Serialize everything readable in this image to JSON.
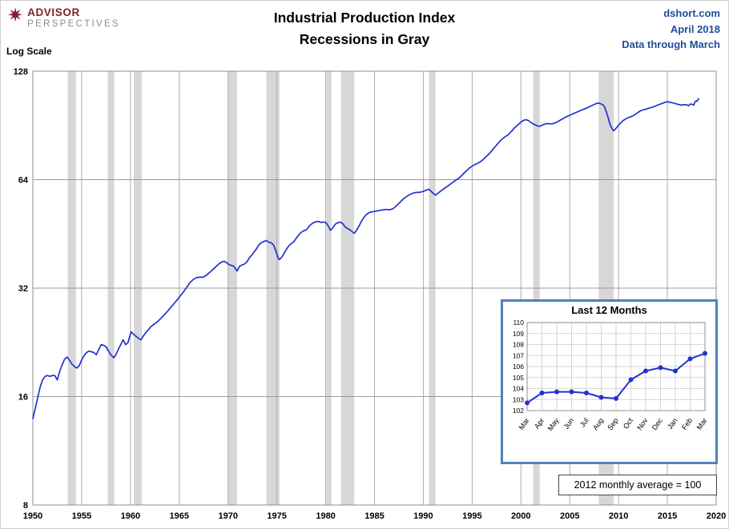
{
  "header": {
    "logo": {
      "icon": "compass-star-icon",
      "line1": "ADVISOR",
      "line2": "PERSPECTIVES"
    },
    "title_line1": "Industrial Production Index",
    "title_line2": "Recessions in Gray",
    "source": {
      "site": "dshort.com",
      "date": "April 2018",
      "note": "Data through March"
    }
  },
  "chart_data": {
    "type": "line",
    "title": "Industrial Production Index",
    "subtitle": "Recessions in Gray",
    "y_scale": "log2",
    "y_scale_label": "Log Scale",
    "ylim": [
      8,
      128
    ],
    "y_ticks": [
      128,
      64,
      32,
      16,
      8
    ],
    "xlim": [
      1950,
      2020
    ],
    "x_ticks": [
      1950,
      1955,
      1960,
      1965,
      1970,
      1975,
      1980,
      1985,
      1990,
      1995,
      2000,
      2005,
      2010,
      2015,
      2020
    ],
    "line_color": "#2133cc",
    "recession_color": "#d7d7d7",
    "grid": true,
    "legend_position": "none",
    "footnote": "2012  monthly average = 100",
    "recessions": [
      [
        1953.58,
        1954.42
      ],
      [
        1957.67,
        1958.33
      ],
      [
        1960.33,
        1961.17
      ],
      [
        1969.96,
        1970.92
      ],
      [
        1973.92,
        1975.25
      ],
      [
        1980.08,
        1980.58
      ],
      [
        1981.58,
        1982.92
      ],
      [
        1990.58,
        1991.25
      ],
      [
        2001.25,
        2001.92
      ],
      [
        2007.96,
        2009.5
      ]
    ],
    "series": [
      {
        "name": "Industrial Production Index (2012=100)",
        "points": [
          [
            1950.0,
            13.9
          ],
          [
            1950.25,
            14.8
          ],
          [
            1950.5,
            15.9
          ],
          [
            1950.75,
            17.0
          ],
          [
            1951.0,
            17.8
          ],
          [
            1951.25,
            18.2
          ],
          [
            1951.5,
            18.3
          ],
          [
            1951.75,
            18.2
          ],
          [
            1952.0,
            18.3
          ],
          [
            1952.25,
            18.3
          ],
          [
            1952.5,
            17.8
          ],
          [
            1952.75,
            18.8
          ],
          [
            1953.0,
            19.6
          ],
          [
            1953.25,
            20.3
          ],
          [
            1953.5,
            20.6
          ],
          [
            1953.75,
            20.2
          ],
          [
            1954.0,
            19.7
          ],
          [
            1954.25,
            19.4
          ],
          [
            1954.5,
            19.2
          ],
          [
            1954.75,
            19.5
          ],
          [
            1955.0,
            20.2
          ],
          [
            1955.25,
            20.8
          ],
          [
            1955.5,
            21.2
          ],
          [
            1955.75,
            21.4
          ],
          [
            1956.0,
            21.3
          ],
          [
            1956.25,
            21.2
          ],
          [
            1956.5,
            20.9
          ],
          [
            1956.75,
            21.6
          ],
          [
            1957.0,
            22.3
          ],
          [
            1957.25,
            22.2
          ],
          [
            1957.5,
            22.0
          ],
          [
            1957.75,
            21.4
          ],
          [
            1958.0,
            20.9
          ],
          [
            1958.3,
            20.5
          ],
          [
            1958.5,
            20.9
          ],
          [
            1958.75,
            21.6
          ],
          [
            1959.0,
            22.3
          ],
          [
            1959.25,
            23.0
          ],
          [
            1959.5,
            22.3
          ],
          [
            1959.75,
            22.6
          ],
          [
            1959.92,
            23.5
          ],
          [
            1960.08,
            24.2
          ],
          [
            1960.33,
            23.8
          ],
          [
            1960.58,
            23.5
          ],
          [
            1960.83,
            23.2
          ],
          [
            1961.08,
            23.0
          ],
          [
            1961.33,
            23.6
          ],
          [
            1961.58,
            24.1
          ],
          [
            1961.83,
            24.5
          ],
          [
            1962.08,
            25.0
          ],
          [
            1962.42,
            25.4
          ],
          [
            1962.75,
            25.8
          ],
          [
            1963.08,
            26.3
          ],
          [
            1963.42,
            26.9
          ],
          [
            1963.75,
            27.5
          ],
          [
            1964.08,
            28.2
          ],
          [
            1964.42,
            28.9
          ],
          [
            1964.75,
            29.6
          ],
          [
            1965.08,
            30.4
          ],
          [
            1965.42,
            31.2
          ],
          [
            1965.75,
            32.1
          ],
          [
            1966.08,
            33.1
          ],
          [
            1966.42,
            33.8
          ],
          [
            1966.75,
            34.2
          ],
          [
            1967.08,
            34.3
          ],
          [
            1967.42,
            34.3
          ],
          [
            1967.75,
            34.7
          ],
          [
            1968.08,
            35.3
          ],
          [
            1968.42,
            36.0
          ],
          [
            1968.75,
            36.7
          ],
          [
            1969.08,
            37.4
          ],
          [
            1969.42,
            37.9
          ],
          [
            1969.58,
            38.0
          ],
          [
            1969.83,
            37.7
          ],
          [
            1970.08,
            37.2
          ],
          [
            1970.33,
            37.0
          ],
          [
            1970.58,
            36.8
          ],
          [
            1970.83,
            36.0
          ],
          [
            1970.92,
            35.7
          ],
          [
            1971.17,
            36.8
          ],
          [
            1971.42,
            37.1
          ],
          [
            1971.67,
            37.3
          ],
          [
            1971.92,
            37.8
          ],
          [
            1972.17,
            38.8
          ],
          [
            1972.42,
            39.5
          ],
          [
            1972.67,
            40.3
          ],
          [
            1972.92,
            41.2
          ],
          [
            1973.17,
            42.2
          ],
          [
            1973.42,
            42.8
          ],
          [
            1973.67,
            43.1
          ],
          [
            1973.92,
            43.4
          ],
          [
            1974.17,
            42.9
          ],
          [
            1974.42,
            42.8
          ],
          [
            1974.67,
            42.1
          ],
          [
            1974.92,
            40.4
          ],
          [
            1975.08,
            39.1
          ],
          [
            1975.25,
            38.4
          ],
          [
            1975.5,
            39.0
          ],
          [
            1975.75,
            40.0
          ],
          [
            1976.0,
            41.1
          ],
          [
            1976.25,
            42.0
          ],
          [
            1976.5,
            42.6
          ],
          [
            1976.75,
            43.1
          ],
          [
            1977.0,
            44.1
          ],
          [
            1977.25,
            45.0
          ],
          [
            1977.5,
            45.7
          ],
          [
            1977.75,
            46.2
          ],
          [
            1978.0,
            46.4
          ],
          [
            1978.25,
            47.3
          ],
          [
            1978.5,
            48.1
          ],
          [
            1978.75,
            48.6
          ],
          [
            1979.0,
            48.9
          ],
          [
            1979.25,
            49.0
          ],
          [
            1979.5,
            48.7
          ],
          [
            1979.75,
            48.8
          ],
          [
            1980.0,
            48.7
          ],
          [
            1980.25,
            47.7
          ],
          [
            1980.5,
            46.3
          ],
          [
            1980.75,
            47.2
          ],
          [
            1981.0,
            48.2
          ],
          [
            1981.25,
            48.6
          ],
          [
            1981.5,
            48.8
          ],
          [
            1981.75,
            48.3
          ],
          [
            1982.0,
            47.3
          ],
          [
            1982.25,
            46.8
          ],
          [
            1982.5,
            46.4
          ],
          [
            1982.75,
            45.8
          ],
          [
            1982.92,
            45.4
          ],
          [
            1983.17,
            46.4
          ],
          [
            1983.42,
            47.6
          ],
          [
            1983.67,
            49.1
          ],
          [
            1983.92,
            50.3
          ],
          [
            1984.17,
            51.2
          ],
          [
            1984.42,
            51.8
          ],
          [
            1984.67,
            52.1
          ],
          [
            1984.92,
            52.2
          ],
          [
            1985.25,
            52.4
          ],
          [
            1985.58,
            52.6
          ],
          [
            1985.92,
            52.8
          ],
          [
            1986.25,
            52.9
          ],
          [
            1986.58,
            52.8
          ],
          [
            1986.92,
            53.2
          ],
          [
            1987.25,
            54.2
          ],
          [
            1987.58,
            55.3
          ],
          [
            1987.92,
            56.5
          ],
          [
            1988.25,
            57.4
          ],
          [
            1988.58,
            58.1
          ],
          [
            1988.92,
            58.7
          ],
          [
            1989.25,
            59.0
          ],
          [
            1989.58,
            59.0
          ],
          [
            1989.92,
            59.3
          ],
          [
            1990.25,
            59.8
          ],
          [
            1990.58,
            60.2
          ],
          [
            1990.83,
            59.3
          ],
          [
            1991.08,
            58.4
          ],
          [
            1991.25,
            58.0
          ],
          [
            1991.5,
            58.7
          ],
          [
            1991.75,
            59.4
          ],
          [
            1992.0,
            60.1
          ],
          [
            1992.33,
            61.0
          ],
          [
            1992.67,
            61.9
          ],
          [
            1993.0,
            62.9
          ],
          [
            1993.33,
            63.8
          ],
          [
            1993.67,
            64.7
          ],
          [
            1994.0,
            66.0
          ],
          [
            1994.33,
            67.4
          ],
          [
            1994.67,
            68.7
          ],
          [
            1995.0,
            69.8
          ],
          [
            1995.33,
            70.6
          ],
          [
            1995.67,
            71.3
          ],
          [
            1996.0,
            72.3
          ],
          [
            1996.33,
            73.7
          ],
          [
            1996.67,
            75.2
          ],
          [
            1997.0,
            76.9
          ],
          [
            1997.33,
            78.8
          ],
          [
            1997.67,
            80.8
          ],
          [
            1998.0,
            82.6
          ],
          [
            1998.33,
            84.0
          ],
          [
            1998.67,
            85.2
          ],
          [
            1999.0,
            87.0
          ],
          [
            1999.33,
            89.0
          ],
          [
            1999.67,
            90.8
          ],
          [
            2000.0,
            92.5
          ],
          [
            2000.25,
            93.4
          ],
          [
            2000.5,
            93.9
          ],
          [
            2000.75,
            93.5
          ],
          [
            2001.0,
            92.3
          ],
          [
            2001.25,
            91.4
          ],
          [
            2001.5,
            90.7
          ],
          [
            2001.75,
            90.2
          ],
          [
            2001.92,
            90.0
          ],
          [
            2002.25,
            90.9
          ],
          [
            2002.5,
            91.4
          ],
          [
            2002.75,
            91.6
          ],
          [
            2003.0,
            91.4
          ],
          [
            2003.25,
            91.5
          ],
          [
            2003.5,
            92.0
          ],
          [
            2003.75,
            92.7
          ],
          [
            2004.0,
            93.5
          ],
          [
            2004.33,
            94.6
          ],
          [
            2004.67,
            95.7
          ],
          [
            2005.0,
            96.6
          ],
          [
            2005.33,
            97.5
          ],
          [
            2005.67,
            98.4
          ],
          [
            2006.0,
            99.3
          ],
          [
            2006.33,
            100.2
          ],
          [
            2006.67,
            101.0
          ],
          [
            2007.0,
            102.0
          ],
          [
            2007.33,
            103.0
          ],
          [
            2007.67,
            104.0
          ],
          [
            2007.92,
            104.5
          ],
          [
            2008.17,
            104.0
          ],
          [
            2008.42,
            103.2
          ],
          [
            2008.58,
            101.8
          ],
          [
            2008.75,
            98.6
          ],
          [
            2008.92,
            95.5
          ],
          [
            2009.08,
            92.0
          ],
          [
            2009.25,
            89.5
          ],
          [
            2009.42,
            87.9
          ],
          [
            2009.5,
            87.5
          ],
          [
            2009.67,
            88.4
          ],
          [
            2009.92,
            90.1
          ],
          [
            2010.17,
            91.7
          ],
          [
            2010.42,
            93.2
          ],
          [
            2010.67,
            94.1
          ],
          [
            2010.92,
            95.0
          ],
          [
            2011.17,
            95.5
          ],
          [
            2011.42,
            96.0
          ],
          [
            2011.67,
            97.0
          ],
          [
            2011.92,
            98.0
          ],
          [
            2012.17,
            99.1
          ],
          [
            2012.42,
            99.8
          ],
          [
            2012.67,
            100.2
          ],
          [
            2012.92,
            100.7
          ],
          [
            2013.17,
            101.2
          ],
          [
            2013.42,
            101.6
          ],
          [
            2013.67,
            102.2
          ],
          [
            2013.92,
            102.9
          ],
          [
            2014.17,
            103.5
          ],
          [
            2014.42,
            104.1
          ],
          [
            2014.67,
            104.7
          ],
          [
            2014.92,
            105.3
          ],
          [
            2015.17,
            105.1
          ],
          [
            2015.42,
            104.7
          ],
          [
            2015.67,
            104.4
          ],
          [
            2015.92,
            103.9
          ],
          [
            2016.17,
            103.4
          ],
          [
            2016.42,
            103.1
          ],
          [
            2016.67,
            103.3
          ],
          [
            2016.92,
            103.4
          ],
          [
            2017.04,
            103.0
          ],
          [
            2017.21,
            102.7
          ],
          [
            2017.29,
            103.6
          ],
          [
            2017.38,
            103.7
          ],
          [
            2017.46,
            103.7
          ],
          [
            2017.54,
            103.6
          ],
          [
            2017.63,
            103.2
          ],
          [
            2017.71,
            103.1
          ],
          [
            2017.79,
            104.8
          ],
          [
            2017.88,
            105.6
          ],
          [
            2017.96,
            105.9
          ],
          [
            2018.04,
            105.6
          ],
          [
            2018.13,
            106.7
          ],
          [
            2018.21,
            107.2
          ]
        ]
      }
    ],
    "inset": {
      "type": "line",
      "title": "Last 12 Months",
      "categories": [
        "Mar",
        "Apr",
        "May",
        "Jun",
        "Jul",
        "Aug",
        "Sep",
        "Oct",
        "Nov",
        "Dec",
        "Jan",
        "Feb",
        "Mar"
      ],
      "values": [
        102.7,
        103.6,
        103.7,
        103.7,
        103.6,
        103.2,
        103.1,
        104.8,
        105.6,
        105.9,
        105.6,
        106.7,
        107.2
      ],
      "ylim": [
        102,
        110
      ],
      "y_ticks": [
        102,
        103,
        104,
        105,
        106,
        107,
        108,
        109,
        110
      ],
      "grid": true
    }
  }
}
